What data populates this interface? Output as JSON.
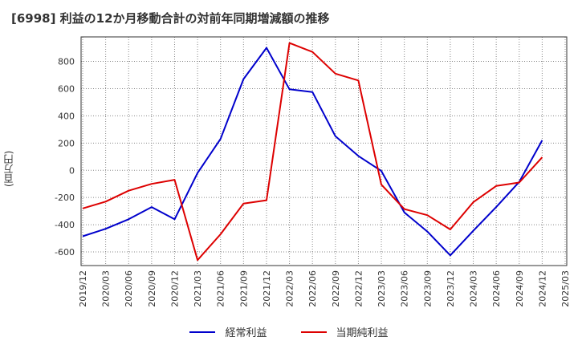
{
  "chart_data": {
    "type": "line",
    "title": "[6998]  利益の12か月移動合計の対前年同期増減額の推移",
    "ylabel": "(百万円)",
    "xlabel": "",
    "ylim": [
      -700,
      980
    ],
    "yticks": [
      -600,
      -400,
      -200,
      0,
      200,
      400,
      600,
      800
    ],
    "categories": [
      "2019/12",
      "2020/03",
      "2020/06",
      "2020/09",
      "2020/12",
      "2021/03",
      "2021/06",
      "2021/09",
      "2021/12",
      "2022/03",
      "2022/06",
      "2022/09",
      "2022/12",
      "2023/03",
      "2023/06",
      "2023/09",
      "2023/12",
      "2024/03",
      "2024/06",
      "2024/09",
      "2024/12",
      "2025/03"
    ],
    "series": [
      {
        "name": "経常利益",
        "color": "#0000cc",
        "values": [
          -485,
          -430,
          -360,
          -270,
          -360,
          -20,
          230,
          670,
          900,
          595,
          575,
          250,
          105,
          -5,
          -310,
          -450,
          -625,
          -445,
          -270,
          -85,
          220,
          null
        ]
      },
      {
        "name": "当期純利益",
        "color": "#dd0000",
        "values": [
          -280,
          -230,
          -150,
          -100,
          -70,
          -660,
          -470,
          -245,
          -220,
          935,
          870,
          710,
          660,
          -105,
          -285,
          -330,
          -435,
          -235,
          -115,
          -90,
          95,
          null
        ]
      }
    ]
  }
}
